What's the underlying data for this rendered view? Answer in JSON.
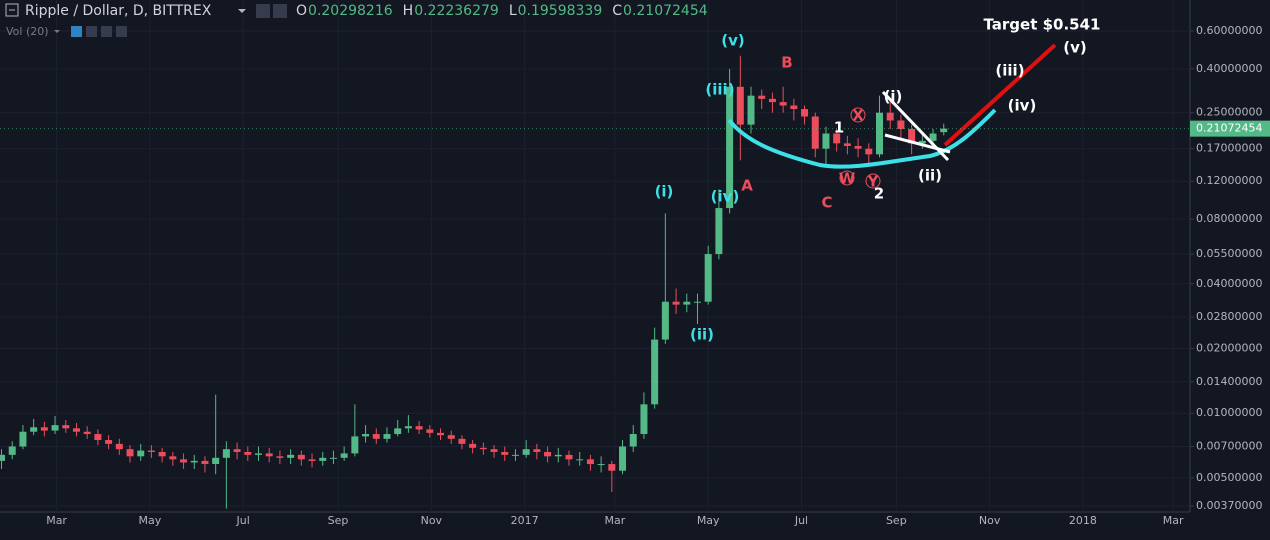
{
  "chart_data": {
    "type": "candlestick",
    "title": "Ripple / Dollar, D, BITTREX",
    "indicator": "Vol (20)",
    "ohlc_labels": [
      "O",
      "H",
      "L",
      "C"
    ],
    "log_scale": true,
    "up_color": "#53b987",
    "down_color": "#eb4d5c",
    "xlim": [
      "2016-01-24",
      "2018-03-12"
    ],
    "xticks": [
      {
        "value": "2016-03",
        "label": "Mar"
      },
      {
        "value": "2016-05",
        "label": "May"
      },
      {
        "value": "2016-07",
        "label": "Jul"
      },
      {
        "value": "2016-09",
        "label": "Sep"
      },
      {
        "value": "2016-11",
        "label": "Nov"
      },
      {
        "value": "2017-01",
        "label": "2017"
      },
      {
        "value": "2017-03",
        "label": "Mar"
      },
      {
        "value": "2017-05",
        "label": "May"
      },
      {
        "value": "2017-07",
        "label": "Jul"
      },
      {
        "value": "2017-09",
        "label": "Sep"
      },
      {
        "value": "2017-11",
        "label": "Nov"
      },
      {
        "value": "2018-01",
        "label": "2018"
      },
      {
        "value": "2018-03",
        "label": "Mar"
      }
    ],
    "ylim": [
      0.00347,
      0.836
    ],
    "yticks": [
      {
        "value": 0.6,
        "label": "0.60000000"
      },
      {
        "value": 0.4,
        "label": "0.40000000"
      },
      {
        "value": 0.25,
        "label": "0.25000000"
      },
      {
        "value": 0.17,
        "label": "0.17000000"
      },
      {
        "value": 0.12,
        "label": "0.12000000"
      },
      {
        "value": 0.08,
        "label": "0.08000000"
      },
      {
        "value": 0.055,
        "label": "0.05500000"
      },
      {
        "value": 0.04,
        "label": "0.04000000"
      },
      {
        "value": 0.028,
        "label": "0.02800000"
      },
      {
        "value": 0.02,
        "label": "0.02000000"
      },
      {
        "value": 0.014,
        "label": "0.01400000"
      },
      {
        "value": 0.01,
        "label": "0.01000000"
      },
      {
        "value": 0.007,
        "label": "0.00700000"
      },
      {
        "value": 0.005,
        "label": "0.00500000"
      },
      {
        "value": 0.0037,
        "label": "0.00370000"
      }
    ],
    "dates": [
      "2016-01-25",
      "2016-02-01",
      "2016-02-08",
      "2016-02-15",
      "2016-02-22",
      "2016-02-29",
      "2016-03-07",
      "2016-03-14",
      "2016-03-21",
      "2016-03-28",
      "2016-04-04",
      "2016-04-11",
      "2016-04-18",
      "2016-04-25",
      "2016-05-02",
      "2016-05-09",
      "2016-05-16",
      "2016-05-23",
      "2016-05-30",
      "2016-06-06",
      "2016-06-13",
      "2016-06-20",
      "2016-06-27",
      "2016-07-04",
      "2016-07-11",
      "2016-07-18",
      "2016-07-25",
      "2016-08-01",
      "2016-08-08",
      "2016-08-15",
      "2016-08-22",
      "2016-08-29",
      "2016-09-05",
      "2016-09-12",
      "2016-09-19",
      "2016-09-26",
      "2016-10-03",
      "2016-10-10",
      "2016-10-17",
      "2016-10-24",
      "2016-10-31",
      "2016-11-07",
      "2016-11-14",
      "2016-11-21",
      "2016-11-28",
      "2016-12-05",
      "2016-12-12",
      "2016-12-19",
      "2016-12-26",
      "2017-01-02",
      "2017-01-09",
      "2017-01-16",
      "2017-01-23",
      "2017-01-30",
      "2017-02-06",
      "2017-02-13",
      "2017-02-20",
      "2017-02-27",
      "2017-03-06",
      "2017-03-13",
      "2017-03-20",
      "2017-03-27",
      "2017-04-03",
      "2017-04-10",
      "2017-04-17",
      "2017-04-24",
      "2017-05-01",
      "2017-05-08",
      "2017-05-15",
      "2017-05-22",
      "2017-05-29",
      "2017-06-05",
      "2017-06-12",
      "2017-06-19",
      "2017-06-26",
      "2017-07-03",
      "2017-07-10",
      "2017-07-17",
      "2017-07-24",
      "2017-07-31",
      "2017-08-07",
      "2017-08-14",
      "2017-08-21",
      "2017-08-28",
      "2017-09-04",
      "2017-09-11",
      "2017-09-18",
      "2017-09-25",
      "2017-10-02"
    ],
    "open": [
      0.006,
      0.0064,
      0.007,
      0.0082,
      0.0086,
      0.0083,
      0.0088,
      0.0085,
      0.0082,
      0.008,
      0.0075,
      0.0072,
      0.0068,
      0.0063,
      0.0067,
      0.0066,
      0.0063,
      0.0061,
      0.0059,
      0.006,
      0.0058,
      0.0062,
      0.0068,
      0.0066,
      0.0064,
      0.0065,
      0.0063,
      0.0062,
      0.0064,
      0.0061,
      0.006,
      0.0062,
      0.0062,
      0.0065,
      0.0078,
      0.008,
      0.0076,
      0.008,
      0.0085,
      0.0087,
      0.0084,
      0.0081,
      0.0079,
      0.0076,
      0.0072,
      0.0069,
      0.0068,
      0.0066,
      0.0064,
      0.0064,
      0.0068,
      0.0066,
      0.0063,
      0.0064,
      0.0061,
      0.0061,
      0.0058,
      0.0058,
      0.0054,
      0.007,
      0.008,
      0.011,
      0.022,
      0.033,
      0.032,
      0.033,
      0.033,
      0.055,
      0.09,
      0.33,
      0.22,
      0.3,
      0.29,
      0.28,
      0.27,
      0.26,
      0.24,
      0.17,
      0.2,
      0.18,
      0.175,
      0.17,
      0.16,
      0.25,
      0.23,
      0.21,
      0.18,
      0.185,
      0.20298216
    ],
    "high": [
      0.0068,
      0.0074,
      0.0088,
      0.0094,
      0.0091,
      0.0097,
      0.0093,
      0.009,
      0.0087,
      0.0084,
      0.0079,
      0.0076,
      0.0071,
      0.0072,
      0.0071,
      0.0069,
      0.0066,
      0.0065,
      0.0064,
      0.0063,
      0.0122,
      0.0074,
      0.0073,
      0.007,
      0.007,
      0.0069,
      0.0067,
      0.0068,
      0.0067,
      0.0065,
      0.0066,
      0.0067,
      0.007,
      0.011,
      0.0088,
      0.0085,
      0.0086,
      0.0093,
      0.0098,
      0.0092,
      0.0088,
      0.0085,
      0.0083,
      0.0079,
      0.0075,
      0.0073,
      0.0071,
      0.007,
      0.0068,
      0.0075,
      0.0072,
      0.007,
      0.0069,
      0.0067,
      0.0066,
      0.0064,
      0.0063,
      0.006,
      0.0075,
      0.0088,
      0.0125,
      0.025,
      0.085,
      0.038,
      0.036,
      0.036,
      0.06,
      0.11,
      0.4,
      0.46,
      0.33,
      0.32,
      0.31,
      0.33,
      0.29,
      0.27,
      0.25,
      0.215,
      0.21,
      0.195,
      0.19,
      0.18,
      0.3,
      0.28,
      0.245,
      0.22,
      0.2,
      0.21,
      0.22236279
    ],
    "low": [
      0.0055,
      0.0061,
      0.0068,
      0.0079,
      0.0078,
      0.008,
      0.0081,
      0.0078,
      0.0076,
      0.0071,
      0.0068,
      0.0064,
      0.0059,
      0.006,
      0.0062,
      0.0059,
      0.0057,
      0.0055,
      0.0055,
      0.0053,
      0.0052,
      0.0036,
      0.0061,
      0.006,
      0.006,
      0.0059,
      0.0058,
      0.0058,
      0.0057,
      0.0056,
      0.0057,
      0.0058,
      0.006,
      0.0063,
      0.0073,
      0.0072,
      0.0073,
      0.0078,
      0.0081,
      0.008,
      0.0077,
      0.0075,
      0.0072,
      0.0068,
      0.0065,
      0.0064,
      0.0062,
      0.006,
      0.006,
      0.0062,
      0.0061,
      0.0059,
      0.0059,
      0.0057,
      0.0057,
      0.0054,
      0.0053,
      0.0043,
      0.0052,
      0.0066,
      0.0076,
      0.0105,
      0.021,
      0.029,
      0.0295,
      0.026,
      0.032,
      0.052,
      0.085,
      0.15,
      0.2,
      0.26,
      0.25,
      0.25,
      0.23,
      0.22,
      0.155,
      0.14,
      0.165,
      0.16,
      0.155,
      0.145,
      0.155,
      0.21,
      0.19,
      0.16,
      0.17,
      0.18,
      0.19598339
    ],
    "close": [
      0.0064,
      0.007,
      0.0082,
      0.0086,
      0.0083,
      0.0088,
      0.0085,
      0.0082,
      0.008,
      0.0075,
      0.0072,
      0.0068,
      0.0063,
      0.0067,
      0.0066,
      0.0063,
      0.0061,
      0.0059,
      0.006,
      0.0058,
      0.0062,
      0.0068,
      0.0066,
      0.0064,
      0.0065,
      0.0063,
      0.0062,
      0.0064,
      0.0061,
      0.006,
      0.0062,
      0.0062,
      0.0065,
      0.0078,
      0.008,
      0.0076,
      0.008,
      0.0085,
      0.0087,
      0.0084,
      0.0081,
      0.0079,
      0.0076,
      0.0072,
      0.0069,
      0.0068,
      0.0066,
      0.0064,
      0.0064,
      0.0068,
      0.0066,
      0.0063,
      0.0064,
      0.0061,
      0.0061,
      0.0058,
      0.0058,
      0.0054,
      0.007,
      0.008,
      0.011,
      0.022,
      0.033,
      0.032,
      0.033,
      0.033,
      0.055,
      0.09,
      0.33,
      0.22,
      0.3,
      0.29,
      0.28,
      0.27,
      0.26,
      0.24,
      0.17,
      0.2,
      0.18,
      0.175,
      0.17,
      0.16,
      0.25,
      0.23,
      0.21,
      0.18,
      0.185,
      0.2,
      0.21072454
    ],
    "annotations": [
      "Target $0.541",
      "(v)",
      "(iii)",
      "(i)",
      "(iv)",
      "(ii)",
      "A",
      "B",
      "C",
      "1",
      "2",
      "X",
      "W",
      "Y",
      "(i)",
      "(ii)",
      "(iii)",
      "(iv)",
      "(v)"
    ]
  }
}
